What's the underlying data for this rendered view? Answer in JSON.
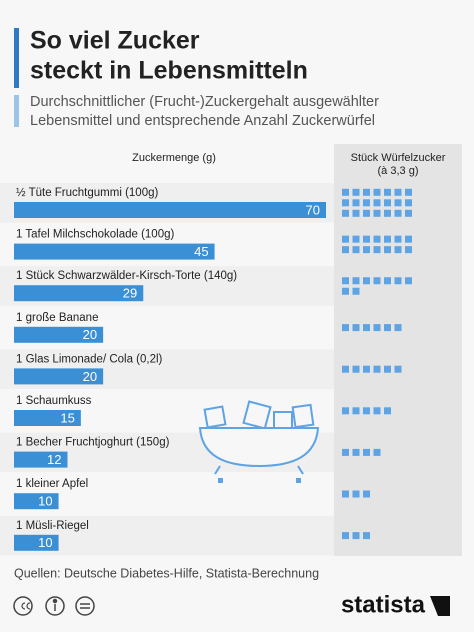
{
  "chart_data": {
    "type": "bar",
    "title": [
      "So viel Zucker",
      "steckt in Lebensmitteln"
    ],
    "subtitle": [
      "Durchschnittlicher (Frucht-)Zuckergehalt ausgewählter",
      "Lebensmittel und entsprechende Anzahl Zuckerwürfel"
    ],
    "value_header": "Zuckermenge (g)",
    "cube_header": [
      "Stück Würfelzucker",
      "(à 3,3 g)"
    ],
    "categories": [
      "½ Tüte Fruchtgummi (100g)",
      "1 Tafel Milchschokolade (100g)",
      "1 Stück Schwarzwälder-Kirsch-Torte (140g)",
      "1 große Banane",
      "1 Glas Limonade/ Cola (0,2l)",
      "1 Schaumkuss",
      "1 Becher Fruchtjoghurt (150g)",
      "1 kleiner Apfel",
      "1 Müsli-Riegel"
    ],
    "values": [
      70,
      45,
      29,
      20,
      20,
      15,
      12,
      10,
      10
    ],
    "cube_counts": [
      21,
      14,
      9,
      6,
      6,
      5,
      4,
      3,
      3
    ],
    "color": "#3b8fd5",
    "cube_color": "#5ea4e4",
    "source": "Quellen: Deutsche Diabetes-Hilfe, Statista-Berechnung",
    "brand": "statista"
  }
}
